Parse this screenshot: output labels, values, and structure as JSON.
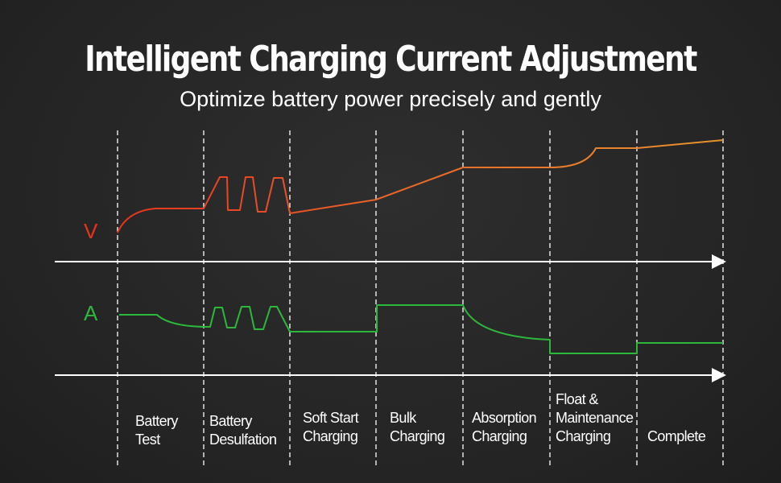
{
  "title": "Intelligent Charging Current Adjustment",
  "subtitle": "Optimize battery power precisely and gently",
  "axes": {
    "voltage": "V",
    "current": "A"
  },
  "colors": {
    "voltage_start": "#e8321e",
    "voltage_end": "#e8892a",
    "current": "#2db83d",
    "axis": "#ffffff",
    "background": "#262626"
  },
  "stages": [
    {
      "line1": "Battery",
      "line2": "Test"
    },
    {
      "line1": "Battery",
      "line2": "Desulfation"
    },
    {
      "line1": "Soft Start",
      "line2": "Charging"
    },
    {
      "line1": "Bulk",
      "line2": "Charging"
    },
    {
      "line1": "Absorption",
      "line2": "Charging"
    },
    {
      "line1": "Float &",
      "line2": "Maintenance",
      "line3": "Charging"
    },
    {
      "line1": "Complete"
    }
  ]
}
